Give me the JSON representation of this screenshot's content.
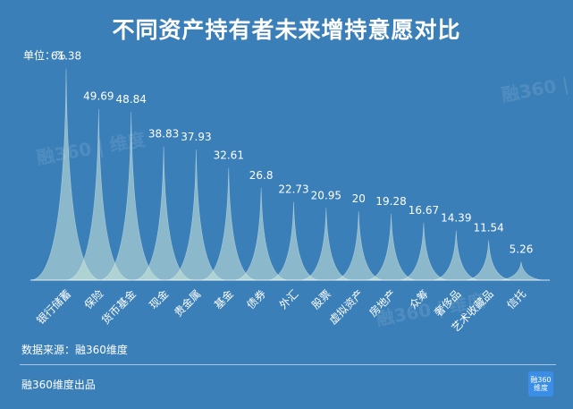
{
  "title": "不同资产持有者未来增持意愿对比",
  "unit_label": "单位：%",
  "source": "数据来源：融360维度",
  "footer": "融360维度出品",
  "logo_text": "融360 维度",
  "watermark": "融360 | 维度",
  "colors": {
    "background": "#3b7fb9",
    "peak_fill": "#cde8da",
    "peak_fill_opacity": 0.55
  },
  "chart_data": {
    "type": "area",
    "categories": [
      "银行储蓄",
      "保险",
      "货币基金",
      "现金",
      "贵金属",
      "基金",
      "债券",
      "外汇",
      "股票",
      "虚拟资产",
      "房地产",
      "众筹",
      "奢侈品",
      "艺术收藏品",
      "信托"
    ],
    "values": [
      61.38,
      49.69,
      48.84,
      38.83,
      37.93,
      32.61,
      26.8,
      22.73,
      20.95,
      20,
      19.28,
      16.67,
      14.39,
      11.54,
      5.26
    ],
    "value_labels": [
      "61.38",
      "49.69",
      "48.84",
      "38.83",
      "37.93",
      "32.61",
      "26.8",
      "22.73",
      "20.95",
      "20",
      "19.28",
      "16.67",
      "14.39",
      "11.54",
      "5.26"
    ],
    "ylabel": "单位：%",
    "ylim": [
      0,
      65
    ],
    "grid": false,
    "legend": "none"
  }
}
